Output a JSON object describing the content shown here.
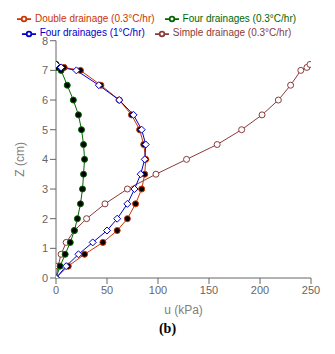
{
  "chart_data": {
    "type": "line",
    "subtitle": "(b)",
    "xlabel": "u (kPa)",
    "ylabel": "Z (cm)",
    "xlim": [
      0,
      250
    ],
    "ylim": [
      0,
      8
    ],
    "xticks": [
      0,
      50,
      100,
      150,
      200,
      250
    ],
    "yticks": [
      0,
      1,
      2,
      3,
      4,
      5,
      6,
      7,
      8
    ],
    "grid": false,
    "legend": "top",
    "series": [
      {
        "name": "Simple drainage (0.3°C/hr)",
        "color": "#8B3A3A",
        "marker": "circle_open",
        "x": [
          0,
          2,
          5,
          10,
          18,
          30,
          48,
          70,
          98,
          128,
          158,
          182,
          202,
          218,
          230,
          240,
          246,
          249
        ],
        "values": [
          0,
          0.4,
          0.8,
          1.2,
          1.6,
          2.0,
          2.5,
          3.0,
          3.5,
          4.0,
          4.5,
          5.0,
          5.5,
          6.0,
          6.5,
          7.0,
          7.1,
          7.2
        ]
      },
      {
        "name": "Double drainage (0.3°C/hr)",
        "color": "#CC3300",
        "marker": "circle_filled",
        "x": [
          0,
          12,
          28,
          46,
          60,
          70,
          78,
          84,
          87,
          88,
          86,
          82,
          74,
          62,
          44,
          24,
          8,
          0
        ],
        "values": [
          0,
          0.4,
          0.8,
          1.2,
          1.6,
          2.0,
          2.5,
          3.0,
          3.5,
          4.0,
          4.5,
          5.0,
          5.5,
          6.0,
          6.5,
          7.0,
          7.1,
          7.2
        ]
      },
      {
        "name": "Four drainages (0.3°C/hr)",
        "color": "#006600",
        "marker": "circle_filled",
        "x": [
          0,
          4,
          9,
          14,
          18,
          21,
          24,
          26,
          27,
          28,
          27,
          25,
          22,
          17,
          11,
          5,
          1,
          0
        ],
        "values": [
          0,
          0.4,
          0.8,
          1.2,
          1.6,
          2.0,
          2.5,
          3.0,
          3.5,
          4.0,
          4.5,
          5.0,
          5.5,
          6.0,
          6.5,
          7.0,
          7.1,
          7.2
        ]
      },
      {
        "name": "Four drainages (1°C/hr)",
        "color": "#0000CC",
        "marker": "diamond_open",
        "x": [
          0,
          10,
          22,
          36,
          50,
          60,
          70,
          77,
          83,
          87,
          88,
          84,
          76,
          62,
          42,
          20,
          5,
          0
        ],
        "values": [
          0,
          0.4,
          0.8,
          1.2,
          1.6,
          2.0,
          2.5,
          3.0,
          3.5,
          4.0,
          4.5,
          5.0,
          5.5,
          6.0,
          6.5,
          7.0,
          7.1,
          7.2
        ]
      }
    ]
  }
}
